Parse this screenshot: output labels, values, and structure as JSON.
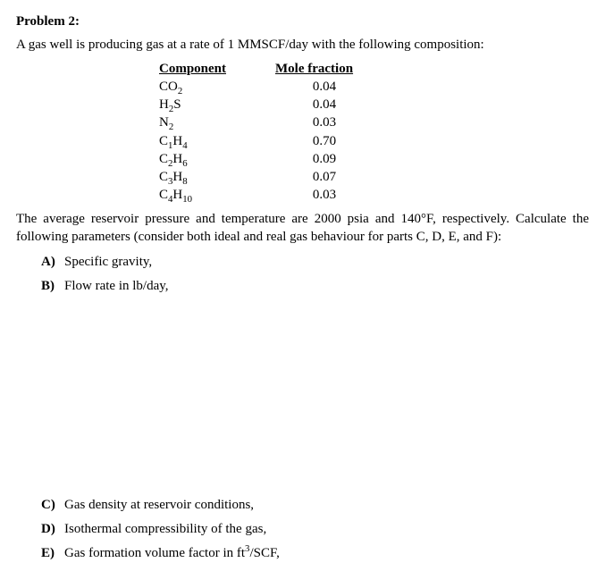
{
  "title": "Problem 2:",
  "intro_prefix": "A gas well is producing gas at a rate of 1 MMSCF/day with the following composition:",
  "table": {
    "headers": {
      "comp": "Component",
      "frac": "Mole fraction"
    },
    "rows": [
      {
        "comp_html": "CO<sub>2</sub>",
        "frac": "0.04"
      },
      {
        "comp_html": "H<sub>2</sub>S",
        "frac": "0.04"
      },
      {
        "comp_html": "N<sub>2</sub>",
        "frac": "0.03"
      },
      {
        "comp_html": "C<sub>1</sub>H<sub>4</sub>",
        "frac": "0.70"
      },
      {
        "comp_html": "C<sub>2</sub>H<sub>6</sub>",
        "frac": "0.09"
      },
      {
        "comp_html": "C<sub>3</sub>H<sub>8</sub>",
        "frac": "0.07"
      },
      {
        "comp_html": "C<sub>4</sub>H<sub>10</sub>",
        "frac": "0.03"
      }
    ]
  },
  "mid_paragraph_html": "The average reservoir pressure and temperature are 2000 psia and 140&deg;F, respectively. Calculate the following parameters (consider both ideal and real gas behaviour for parts C, D, E, and F):",
  "items_top": [
    {
      "label": "A)",
      "text": "Specific gravity,"
    },
    {
      "label": "B)",
      "text": "Flow rate in lb/day,"
    }
  ],
  "items_bottom": [
    {
      "label": "C)",
      "text": "Gas density at reservoir conditions,"
    },
    {
      "label": "D)",
      "text": "Isothermal compressibility of the gas,"
    },
    {
      "label": "E)",
      "text_html": "Gas formation volume factor in ft<sup>3</sup>/SCF,"
    }
  ],
  "style": {
    "font_family": "Times New Roman",
    "font_size_pt": 11,
    "text_color": "#000000",
    "background_color": "#ffffff"
  }
}
